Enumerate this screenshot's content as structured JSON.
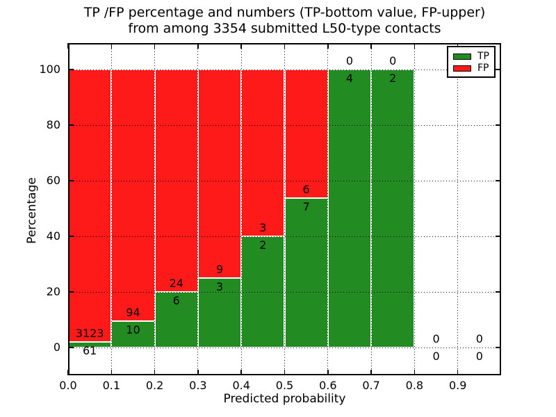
{
  "figure": {
    "title_line1": "TP /FP percentage and numbers (TP-bottom value, FP-upper)",
    "title_line2": "from among 3354 submitted L50-type contacts",
    "xlabel": "Predicted probability",
    "ylabel": "Percentage"
  },
  "chart_data": {
    "type": "bar",
    "stacked": true,
    "title": "TP /FP percentage and numbers (TP-bottom value, FP-upper) from among 3354 submitted L50-type contacts",
    "xlabel": "Predicted probability",
    "ylabel": "Percentage",
    "total_contacts": 3354,
    "xlim": [
      0.0,
      1.0
    ],
    "ylim": [
      -10,
      110
    ],
    "x_tick_labels": [
      "0.0",
      "0.1",
      "0.2",
      "0.3",
      "0.4",
      "0.5",
      "0.6",
      "0.7",
      "0.8",
      "0.9"
    ],
    "y_ticks": [
      0,
      20,
      40,
      60,
      80,
      100
    ],
    "grid": "dotted, both axes, drawn over bars",
    "legend_position": "upper right",
    "colors": {
      "tp": "#228B22",
      "fp": "#FF1A1A"
    },
    "legend": {
      "entries": [
        {
          "label": "TP",
          "color": "#228B22"
        },
        {
          "label": "FP",
          "color": "#FF1A1A"
        }
      ]
    },
    "series": [
      {
        "name": "TP",
        "unit": "percent",
        "values": [
          1.9,
          9.6,
          20,
          25,
          40,
          53.8,
          100,
          100,
          0,
          0
        ]
      },
      {
        "name": "FP",
        "unit": "percent",
        "values": [
          98.1,
          90.4,
          80,
          75,
          60,
          46.2,
          0,
          0,
          0,
          0
        ]
      }
    ],
    "bins": [
      {
        "x_range": [
          0.0,
          0.1
        ],
        "tp_count": 61,
        "fp_count": 3123,
        "tp_pct": 1.9
      },
      {
        "x_range": [
          0.1,
          0.2
        ],
        "tp_count": 10,
        "fp_count": 94,
        "tp_pct": 9.6
      },
      {
        "x_range": [
          0.2,
          0.3
        ],
        "tp_count": 6,
        "fp_count": 24,
        "tp_pct": 20
      },
      {
        "x_range": [
          0.3,
          0.4
        ],
        "tp_count": 3,
        "fp_count": 9,
        "tp_pct": 25
      },
      {
        "x_range": [
          0.4,
          0.5
        ],
        "tp_count": 2,
        "fp_count": 3,
        "tp_pct": 40
      },
      {
        "x_range": [
          0.5,
          0.6
        ],
        "tp_count": 7,
        "fp_count": 6,
        "tp_pct": 53.8
      },
      {
        "x_range": [
          0.6,
          0.7
        ],
        "tp_count": 4,
        "fp_count": 0,
        "tp_pct": 100
      },
      {
        "x_range": [
          0.7,
          0.8
        ],
        "tp_count": 2,
        "fp_count": 0,
        "tp_pct": 100
      },
      {
        "x_range": [
          0.8,
          0.9
        ],
        "tp_count": 0,
        "fp_count": 0,
        "tp_pct": 0
      },
      {
        "x_range": [
          0.9,
          1.0
        ],
        "tp_count": 0,
        "fp_count": 0,
        "tp_pct": 0
      }
    ]
  }
}
